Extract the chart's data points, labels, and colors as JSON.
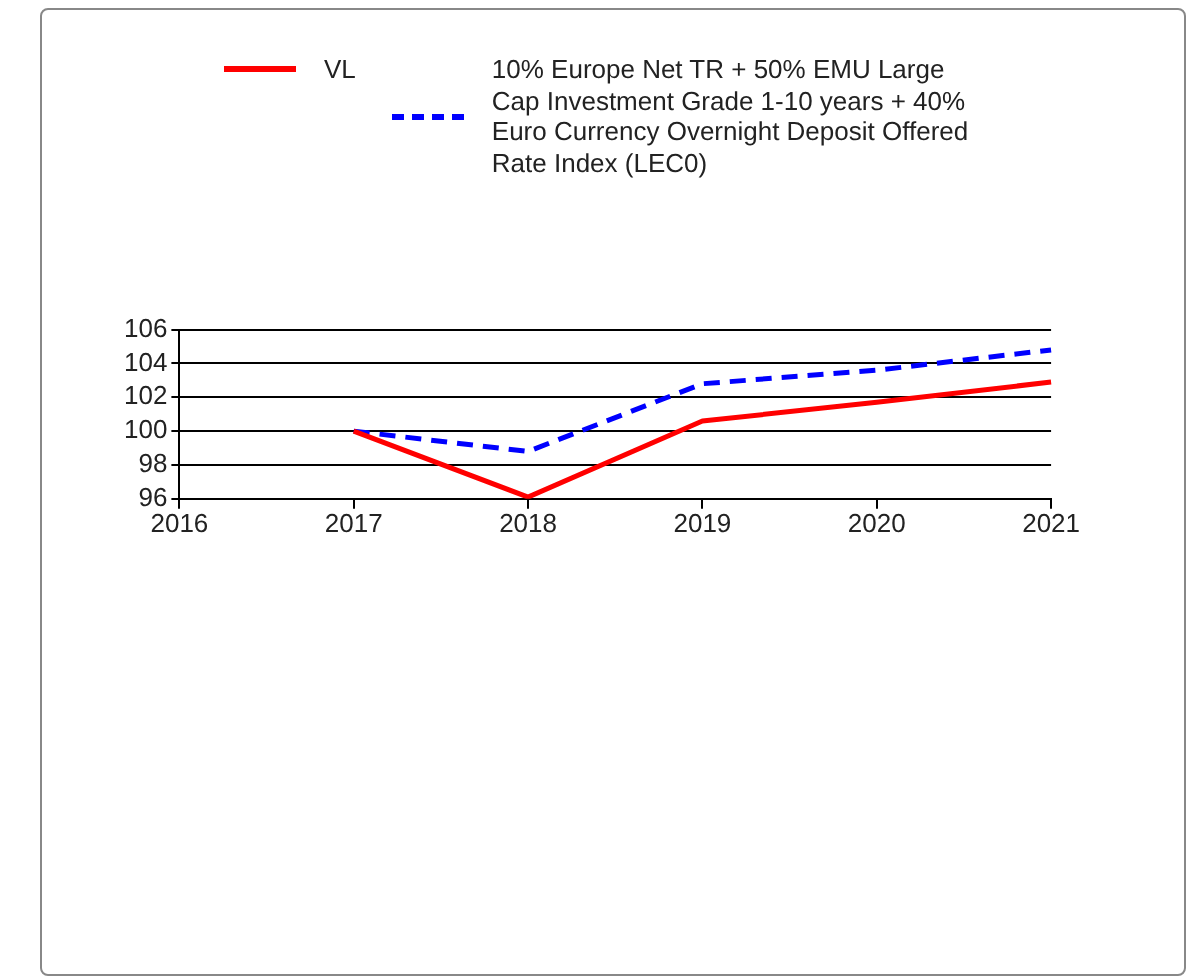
{
  "chart_data": {
    "type": "line",
    "categories": [
      "2016",
      "2017",
      "2018",
      "2019",
      "2020",
      "2021"
    ],
    "series": [
      {
        "name": "VL",
        "color": "#ff0000",
        "line_style": "solid",
        "values": [
          null,
          100,
          96.1,
          100.6,
          101.7,
          102.9
        ]
      },
      {
        "name": "10% Europe Net TR + 50% EMU Large Cap Investment Grade 1-10 years + 40% Euro Currency Overnight Deposit Offered Rate Index (LEC0)",
        "color": "#0000ff",
        "line_style": "dashed",
        "values": [
          null,
          100,
          98.8,
          102.8,
          103.6,
          104.8
        ]
      }
    ],
    "ylim": [
      96,
      106
    ],
    "yticks": [
      96,
      98,
      100,
      102,
      104,
      106
    ],
    "grid": "y",
    "legend": "top",
    "marker": "none"
  }
}
